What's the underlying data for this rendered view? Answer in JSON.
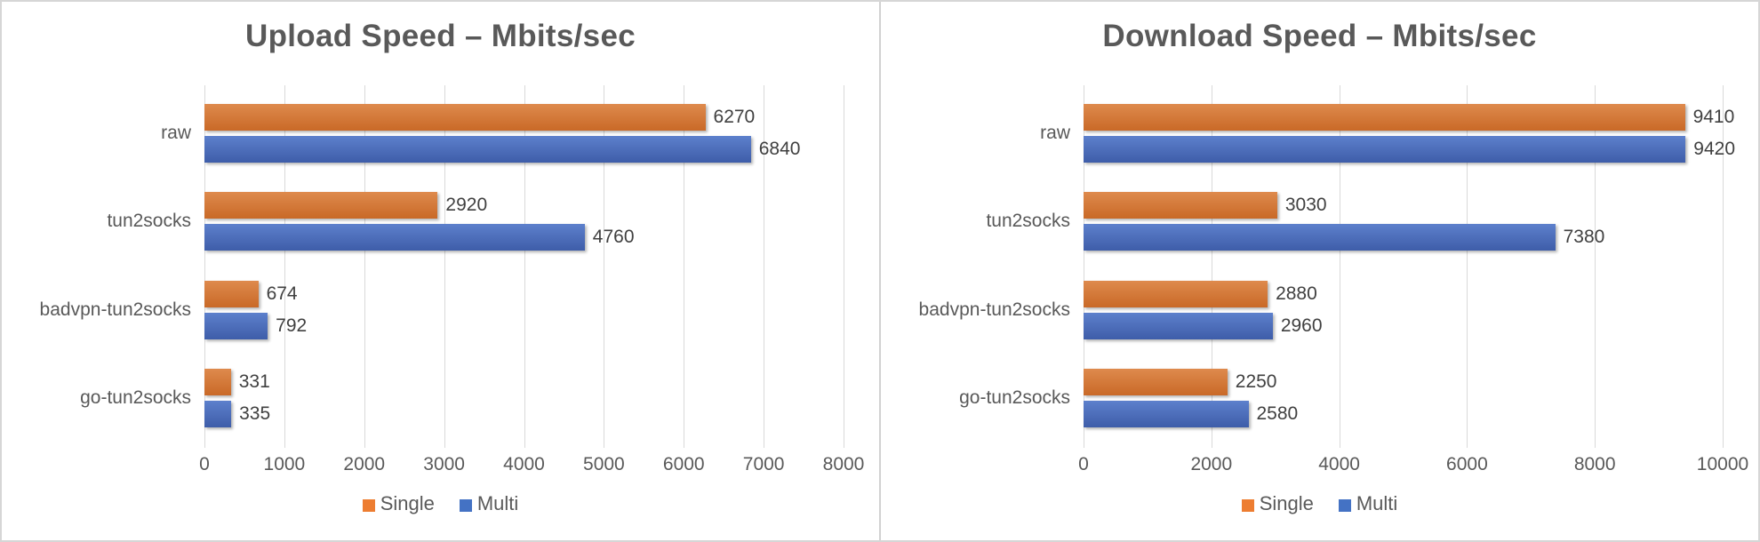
{
  "figure": {
    "background": "#FFFFFF",
    "border_color": "#D6D6D6",
    "divider_color": "#D2D2D2"
  },
  "styles": {
    "title_color": "#595959",
    "axis_label_color": "#595959",
    "category_label_color": "#595959",
    "value_label_color": "#404040",
    "gridline_color": "#D9D9D9",
    "legend_text_color": "#595959"
  },
  "chart_data": [
    {
      "type": "bar",
      "orientation": "horizontal",
      "title": "Upload Speed – Mbits/sec",
      "categories": [
        "raw",
        "tun2socks",
        "badvpn-tun2socks",
        "go-tun2socks"
      ],
      "series": [
        {
          "name": "Single",
          "color": "#ED7D31",
          "gradient": [
            "#DE8A4D",
            "#C96927"
          ],
          "values": [
            6270,
            2920,
            674,
            331
          ]
        },
        {
          "name": "Multi",
          "color": "#4472C4",
          "gradient": [
            "#5D80CC",
            "#3E5DA9"
          ],
          "values": [
            6840,
            4760,
            792,
            335
          ]
        }
      ],
      "x_axis": {
        "min": 0,
        "max": 8000,
        "tick_step": 1000,
        "ticks": [
          0,
          1000,
          2000,
          3000,
          4000,
          5000,
          6000,
          7000,
          8000
        ]
      },
      "value_labels": true,
      "grid": true,
      "legend_position": "bottom"
    },
    {
      "type": "bar",
      "orientation": "horizontal",
      "title": "Download Speed – Mbits/sec",
      "categories": [
        "raw",
        "tun2socks",
        "badvpn-tun2socks",
        "go-tun2socks"
      ],
      "series": [
        {
          "name": "Single",
          "color": "#ED7D31",
          "gradient": [
            "#DE8A4D",
            "#C96927"
          ],
          "values": [
            9410,
            3030,
            2880,
            2250
          ]
        },
        {
          "name": "Multi",
          "color": "#4472C4",
          "gradient": [
            "#5D80CC",
            "#3E5DA9"
          ],
          "values": [
            9420,
            7380,
            2960,
            2580
          ]
        }
      ],
      "x_axis": {
        "min": 0,
        "max": 10000,
        "tick_step": 2000,
        "ticks": [
          0,
          2000,
          4000,
          6000,
          8000,
          10000
        ]
      },
      "value_labels": true,
      "grid": true,
      "legend_position": "bottom"
    }
  ]
}
